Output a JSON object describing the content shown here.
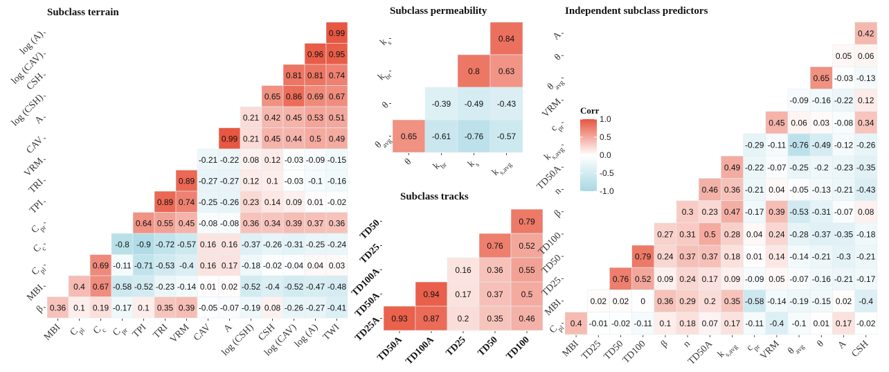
{
  "legend": {
    "title": "Corr",
    "ticks": [
      "1.0",
      "0.5",
      "0.0",
      "-0.5",
      "-1.0"
    ],
    "tick_values": [
      1.0,
      0.5,
      0.0,
      -0.5,
      -1.0
    ],
    "high_color": "#E8553F",
    "mid_color": "#FFFFFF",
    "low_color": "#A8D8E4"
  },
  "chart_data": [
    {
      "type": "heatmap",
      "title": "Subclass terrain",
      "xlabels": [
        "MBI",
        "C_pl",
        "C_c",
        "C_pr",
        "TPI",
        "TRI",
        "VRM",
        "CAV",
        "A",
        "log (CSH)",
        "CSH",
        "log (CAV)",
        "log (A)",
        "TWI"
      ],
      "ylabels": [
        "log (A)",
        "log (CAV)",
        "CSH",
        "log (CSH)",
        "A",
        "CAV",
        "VRM",
        "TRI",
        "TPI",
        "C_pr",
        "C_c",
        "C_pl",
        "MBI",
        "β"
      ],
      "values": [
        [
          null,
          null,
          null,
          null,
          null,
          null,
          null,
          null,
          null,
          null,
          null,
          null,
          null,
          0.99
        ],
        [
          null,
          null,
          null,
          null,
          null,
          null,
          null,
          null,
          null,
          null,
          null,
          null,
          0.96,
          0.95
        ],
        [
          null,
          null,
          null,
          null,
          null,
          null,
          null,
          null,
          null,
          null,
          null,
          0.81,
          0.81,
          0.74
        ],
        [
          null,
          null,
          null,
          null,
          null,
          null,
          null,
          null,
          null,
          null,
          0.65,
          0.86,
          0.69,
          0.67
        ],
        [
          null,
          null,
          null,
          null,
          null,
          null,
          null,
          null,
          null,
          0.21,
          0.42,
          0.45,
          0.53,
          0.51
        ],
        [
          null,
          null,
          null,
          null,
          null,
          null,
          null,
          null,
          0.99,
          0.21,
          0.45,
          0.44,
          0.5,
          0.49
        ],
        [
          null,
          null,
          null,
          null,
          null,
          null,
          null,
          -0.21,
          -0.22,
          0.08,
          0.12,
          -0.03,
          -0.09,
          -0.15
        ],
        [
          null,
          null,
          null,
          null,
          null,
          null,
          0.89,
          -0.27,
          -0.27,
          0.12,
          0.1,
          -0.03,
          -0.1,
          -0.16
        ],
        [
          null,
          null,
          null,
          null,
          null,
          0.89,
          0.74,
          -0.25,
          -0.26,
          0.23,
          0.14,
          0.09,
          0.01,
          -0.02
        ],
        [
          null,
          null,
          null,
          null,
          0.64,
          0.55,
          0.45,
          -0.08,
          -0.08,
          0.36,
          0.34,
          0.39,
          0.37,
          0.36
        ],
        [
          null,
          null,
          null,
          -0.8,
          -0.9,
          -0.72,
          -0.57,
          0.16,
          0.16,
          -0.37,
          -0.26,
          -0.31,
          -0.25,
          -0.24
        ],
        [
          null,
          null,
          0.69,
          -0.11,
          -0.71,
          -0.53,
          -0.4,
          0.16,
          0.17,
          -0.18,
          -0.02,
          -0.04,
          0.04,
          0.03
        ],
        [
          null,
          0.4,
          0.67,
          -0.58,
          -0.52,
          -0.23,
          -0.14,
          0.01,
          0.02,
          -0.52,
          -0.4,
          -0.52,
          -0.47,
          -0.48
        ],
        [
          0.36,
          0.1,
          0.19,
          -0.17,
          0.1,
          0.35,
          0.39,
          -0.05,
          -0.07,
          -0.19,
          0.08,
          -0.26,
          -0.27,
          -0.41
        ]
      ]
    },
    {
      "type": "heatmap",
      "title": "Subclass permeability",
      "xlabels": [
        "θ",
        "k_br",
        "k_s",
        "k_s,avg"
      ],
      "ylabels": [
        "k_s",
        "k_br",
        "θ",
        "θ_avg"
      ],
      "values": [
        [
          null,
          null,
          null,
          0.84
        ],
        [
          null,
          null,
          0.8,
          0.63
        ],
        [
          null,
          -0.39,
          -0.49,
          -0.43
        ],
        [
          0.65,
          -0.61,
          -0.76,
          -0.57
        ]
      ]
    },
    {
      "type": "heatmap",
      "title": "Subclass tracks",
      "xlabels": [
        "TD50A",
        "TD100A",
        "TD25",
        "TD50",
        "TD100"
      ],
      "ylabels": [
        "TD50",
        "TD25",
        "TD100A",
        "TD50A",
        "TD25A"
      ],
      "values": [
        [
          null,
          null,
          null,
          null,
          0.79
        ],
        [
          null,
          null,
          null,
          0.76,
          0.52
        ],
        [
          null,
          null,
          0.16,
          0.36,
          0.55
        ],
        [
          null,
          0.94,
          0.17,
          0.37,
          0.5
        ],
        [
          0.93,
          0.87,
          0.2,
          0.35,
          0.46
        ]
      ]
    },
    {
      "type": "heatmap",
      "title": "Independent subclass predictors",
      "xlabels": [
        "MBI",
        "TD25",
        "TD50",
        "TD100",
        "β",
        "n",
        "TD50A",
        "k_s,avg",
        "c_pr",
        "VRM",
        "θ_avg",
        "θ",
        "A",
        "CSH"
      ],
      "ylabels": [
        "A",
        "θ",
        "θ_avg",
        "VRM",
        "c_pr",
        "k_s,avg",
        "TD50A",
        "n",
        "β",
        "TD100",
        "TD50",
        "TD25",
        "MBI",
        "C_pl"
      ],
      "values": [
        [
          null,
          null,
          null,
          null,
          null,
          null,
          null,
          null,
          null,
          null,
          null,
          null,
          null,
          0.42
        ],
        [
          null,
          null,
          null,
          null,
          null,
          null,
          null,
          null,
          null,
          null,
          null,
          null,
          0.05,
          0.06
        ],
        [
          null,
          null,
          null,
          null,
          null,
          null,
          null,
          null,
          null,
          null,
          null,
          0.65,
          -0.03,
          -0.13
        ],
        [
          null,
          null,
          null,
          null,
          null,
          null,
          null,
          null,
          null,
          null,
          -0.09,
          -0.16,
          -0.22,
          0.12
        ],
        [
          null,
          null,
          null,
          null,
          null,
          null,
          null,
          null,
          null,
          0.45,
          0.06,
          0.03,
          -0.08,
          0.34
        ],
        [
          null,
          null,
          null,
          null,
          null,
          null,
          null,
          null,
          -0.29,
          -0.11,
          -0.76,
          -0.49,
          -0.12,
          -0.26
        ],
        [
          null,
          null,
          null,
          null,
          null,
          null,
          null,
          0.49,
          -0.22,
          -0.07,
          -0.25,
          -0.2,
          -0.23,
          -0.35
        ],
        [
          null,
          null,
          null,
          null,
          null,
          null,
          0.46,
          0.36,
          -0.21,
          0.04,
          -0.05,
          -0.13,
          -0.21,
          -0.43
        ],
        [
          null,
          null,
          null,
          null,
          null,
          0.3,
          0.23,
          0.47,
          -0.17,
          0.39,
          -0.53,
          -0.31,
          -0.07,
          0.08
        ],
        [
          null,
          null,
          null,
          null,
          0.27,
          0.31,
          0.5,
          0.28,
          0.04,
          0.24,
          -0.28,
          -0.37,
          -0.35,
          -0.18
        ],
        [
          null,
          null,
          null,
          0.79,
          0.24,
          0.37,
          0.37,
          0.18,
          0.01,
          0.14,
          -0.14,
          -0.21,
          -0.3,
          -0.21
        ],
        [
          null,
          null,
          0.76,
          0.52,
          0.09,
          0.24,
          0.17,
          0.09,
          -0.09,
          0.05,
          -0.07,
          -0.16,
          -0.21,
          -0.17
        ],
        [
          null,
          0.02,
          0.02,
          0,
          0.36,
          0.29,
          0.2,
          0.35,
          -0.58,
          -0.14,
          -0.19,
          -0.15,
          0.02,
          -0.4
        ],
        [
          0.4,
          -0.01,
          -0.02,
          -0.11,
          0.1,
          0.18,
          0.07,
          0.17,
          -0.11,
          -0.4,
          -0.1,
          0.01,
          0.17,
          -0.02
        ]
      ]
    }
  ]
}
